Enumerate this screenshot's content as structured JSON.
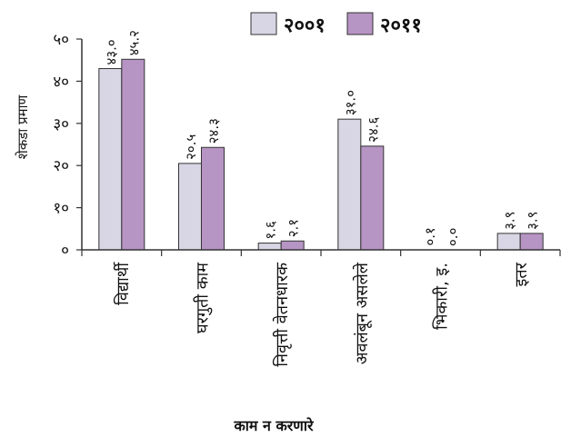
{
  "chart_data": {
    "type": "bar",
    "title": "",
    "xlabel": "काम न करणारे",
    "ylabel": "शेकडा प्रमाण",
    "categories": [
      "विद्यार्थी",
      "घरगुती काम",
      "निवृत्ती वेतनधारक",
      "अवलंबून असलेले",
      "भिकारी, इ.",
      "इतर"
    ],
    "ylim": [
      0,
      50
    ],
    "yticks": [
      0,
      10,
      20,
      30,
      40,
      50
    ],
    "ytick_labels": [
      "०",
      "१०",
      "२०",
      "३०",
      "४०",
      "५०"
    ],
    "grid": false,
    "legend_position": "top",
    "series": [
      {
        "name": "२००१",
        "color": "#d8d6e4",
        "values": [
          43.0,
          20.5,
          1.6,
          31.0,
          0.1,
          3.9
        ],
        "labels": [
          "४३.०",
          "२०.५",
          "१.६",
          "३१.०",
          "०.१",
          "३.९"
        ]
      },
      {
        "name": "२०११",
        "color": "#b694c3",
        "values": [
          45.2,
          24.3,
          2.1,
          24.6,
          0.0,
          3.9
        ],
        "labels": [
          "४५.२",
          "२४.३",
          "२.१",
          "२४.६",
          "०.०",
          "३.९"
        ]
      }
    ]
  }
}
